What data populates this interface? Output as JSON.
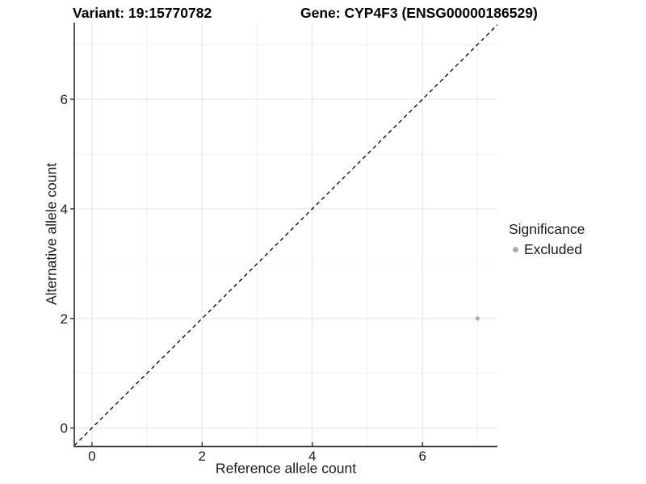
{
  "chart_data": {
    "type": "scatter",
    "titles": {
      "left": "Variant: 19:15770782",
      "right": "Gene: CYP4F3 (ENSG00000186529)"
    },
    "xlabel": "Reference allele count",
    "ylabel": "Alternative allele count",
    "x_ticks": [
      0,
      2,
      4,
      6
    ],
    "y_ticks": [
      0,
      2,
      4,
      6
    ],
    "x_minor_gridlines": [
      1,
      3,
      5,
      7
    ],
    "y_minor_gridlines": [
      1,
      3,
      5,
      7
    ],
    "xlim": [
      -0.32,
      7.36
    ],
    "ylim": [
      -0.33,
      7.4
    ],
    "grid": true,
    "reference_line": {
      "type": "identity",
      "equation": "y = x",
      "style": "dashed",
      "color": "#000000"
    },
    "series": [
      {
        "name": "Excluded",
        "color": "#acacac",
        "points": [
          {
            "x": 7,
            "y": 2
          }
        ]
      }
    ],
    "legend": {
      "title": "Significance",
      "position": "right",
      "items": [
        {
          "label": "Excluded",
          "color": "#acacac"
        }
      ]
    },
    "colors": {
      "background": "#ffffff",
      "grid_major": "#e3e3e3",
      "grid_minor": "#f0f0f0",
      "axis_line": "#404040",
      "tick_mark": "#404040",
      "tick_label": "#1a1a1a",
      "point": "#acacac"
    }
  }
}
